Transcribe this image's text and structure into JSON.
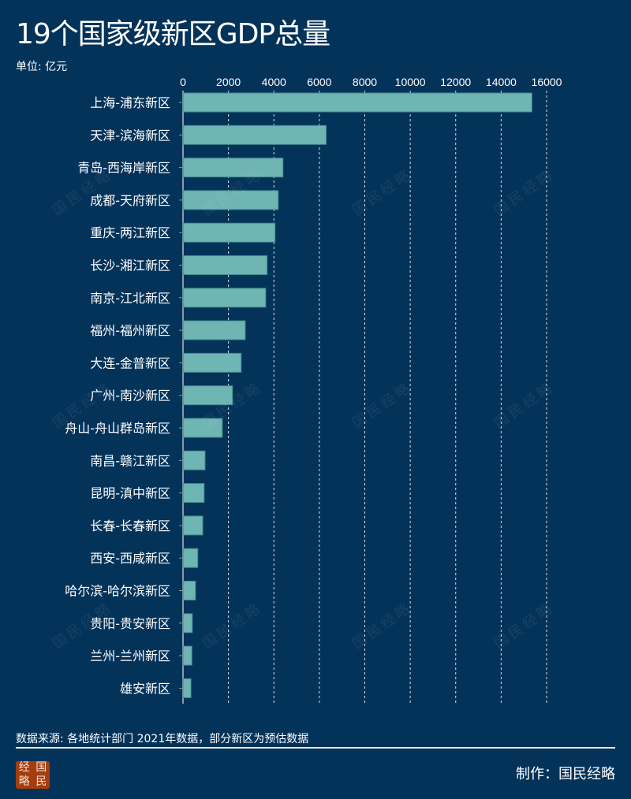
{
  "title": "19个国家级新区GDP总量",
  "unit": "单位: 亿元",
  "source": "数据来源: 各地统计部门 2021年数据，部分新区为预估数据",
  "maker": "制作：国民经略",
  "logo": [
    "经",
    "国",
    "略",
    "民"
  ],
  "watermark": "国民经略",
  "colors": {
    "background": "#04335a",
    "bar": "#6fb5b3",
    "bar_edge": "#3f8a8e",
    "grid": "#dddddd"
  },
  "chart_data": {
    "type": "bar",
    "orientation": "horizontal",
    "title": "19个国家级新区GDP总量",
    "xlabel": "",
    "ylabel": "",
    "unit": "亿元",
    "xlim": [
      0,
      16000
    ],
    "ticks": [
      0,
      2000,
      4000,
      6000,
      8000,
      10000,
      12000,
      14000,
      16000
    ],
    "grid": "vertical dashed",
    "categories": [
      "上海-浦东新区",
      "天津-滨海新区",
      "青岛-西海岸新区",
      "成都-天府新区",
      "重庆-两江新区",
      "长沙-湘江新区",
      "南京-江北新区",
      "福州-福州新区",
      "大连-金普新区",
      "广州-南沙新区",
      "舟山-舟山群岛新区",
      "南昌-赣江新区",
      "昆明-滇中新区",
      "长春-长春新区",
      "西安-西咸新区",
      "哈尔滨-哈尔滨新区",
      "贵阳-贵安新区",
      "兰州-兰州新区",
      "雄安新区"
    ],
    "values": [
      15353,
      6300,
      4400,
      4190,
      4050,
      3700,
      3640,
      2740,
      2560,
      2180,
      1730,
      970,
      930,
      870,
      650,
      550,
      410,
      390,
      350
    ]
  }
}
